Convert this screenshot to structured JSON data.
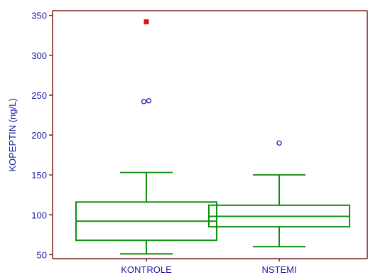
{
  "chart_data": {
    "type": "box",
    "title": "",
    "xlabel": "",
    "ylabel": "KOPEPTIN (ng/L)",
    "ylim": [
      45,
      356
    ],
    "yticks": [
      50,
      100,
      150,
      200,
      250,
      300,
      350
    ],
    "categories": [
      "KONTROLE",
      "NSTEMI"
    ],
    "boxes": [
      {
        "category": "KONTROLE",
        "whisker_low": 51,
        "q1": 68,
        "median": 92,
        "q3": 116,
        "whisker_high": 153,
        "outliers": [
          242,
          243
        ],
        "far_outliers": [
          342
        ]
      },
      {
        "category": "NSTEMI",
        "whisker_low": 60,
        "q1": 85,
        "median": 98,
        "q3": 112,
        "whisker_high": 150,
        "outliers": [
          190
        ],
        "far_outliers": []
      }
    ],
    "grid": false,
    "colors": {
      "axis": "#7a1a1a",
      "box": "#0f8f0f",
      "outlier": "#1a1aa6",
      "far_outlier": "#e01010",
      "text": "#1a1aa6"
    }
  }
}
